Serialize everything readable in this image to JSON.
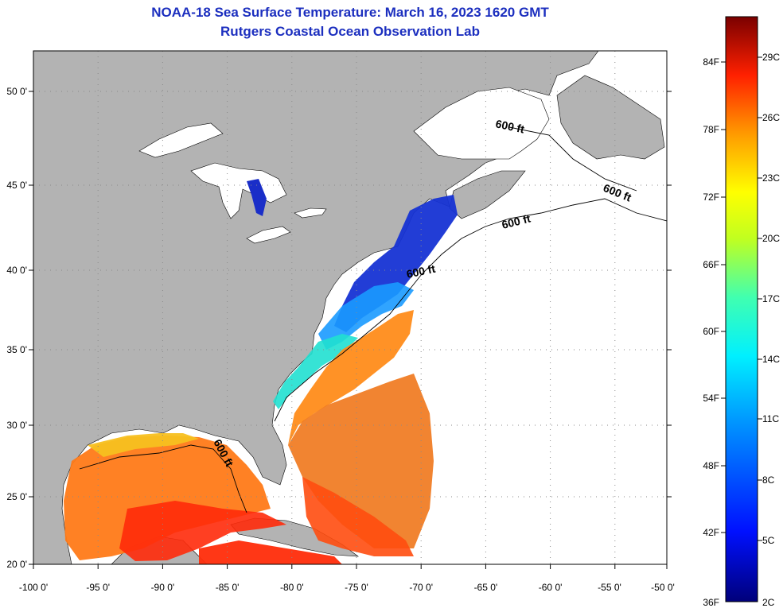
{
  "title": "NOAA-18 Sea Surface Temperature:  March 16, 2023 1620 GMT",
  "subtitle": "Rutgers Coastal Ocean Observation Lab",
  "x_ticks": [
    "-100 0'",
    "-95 0'",
    "-90 0'",
    "-85 0'",
    "-80 0'",
    "-75 0'",
    "-70 0'",
    "-65 0'",
    "-60 0'",
    "-55 0'",
    "-50 0'"
  ],
  "y_ticks": [
    "50 0'",
    "45 0'",
    "40 0'",
    "35 0'",
    "30 0'",
    "25 0'",
    "20 0'"
  ],
  "colorbar": {
    "fahrenheit": [
      "84F",
      "78F",
      "72F",
      "66F",
      "60F",
      "54F",
      "48F",
      "42F",
      "36F"
    ],
    "celsius": [
      "29C",
      "26C",
      "23C",
      "20C",
      "17C",
      "14C",
      "11C",
      "8C",
      "5C",
      "2C"
    ]
  },
  "isobath_labels": [
    "600 ft",
    "600 ft",
    "600 ft",
    "600 ft",
    "600 ft"
  ],
  "colors": {
    "land": "#b3b3b3",
    "title": "#1c2fbf",
    "grid": "#8a8a8a"
  }
}
